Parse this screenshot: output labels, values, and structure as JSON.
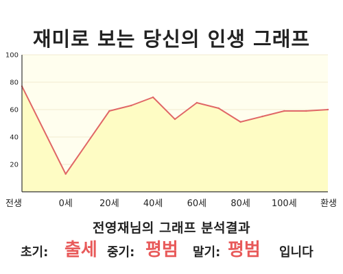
{
  "title": "재미로 보는 당신의 인생 그래프",
  "chart_data": {
    "type": "area",
    "title": "재미로 보는 당신의 인생 그래프",
    "x_categories": [
      "전생",
      "0세",
      "20세",
      "40세",
      "60세",
      "80세",
      "100세",
      "환생"
    ],
    "x_ticks": [
      0,
      1,
      2,
      3,
      4,
      5,
      6,
      7
    ],
    "ylim": [
      0,
      100
    ],
    "y_ticks": [
      20,
      40,
      60,
      80,
      100
    ],
    "grid": true,
    "series": [
      {
        "x": [
          0,
          1,
          2,
          2.5,
          3,
          3.5,
          4,
          4.5,
          5,
          5.5,
          6,
          6.5,
          7
        ],
        "values": [
          77,
          13,
          59,
          63,
          69,
          53,
          65,
          61,
          51,
          55,
          59,
          59,
          60
        ]
      }
    ],
    "colors": {
      "line": "#e06666",
      "fill": "#fefcc4",
      "plot_bg": "#fffeee",
      "grid": "#f1ead0"
    }
  },
  "summary": {
    "heading": "전영재님의 그래프 분석결과",
    "early_label": "초기:",
    "early_value": "출세",
    "mid_label": "중기:",
    "mid_value": "평범",
    "late_label": "말기:",
    "late_value": "평범",
    "ending": "입니다"
  }
}
